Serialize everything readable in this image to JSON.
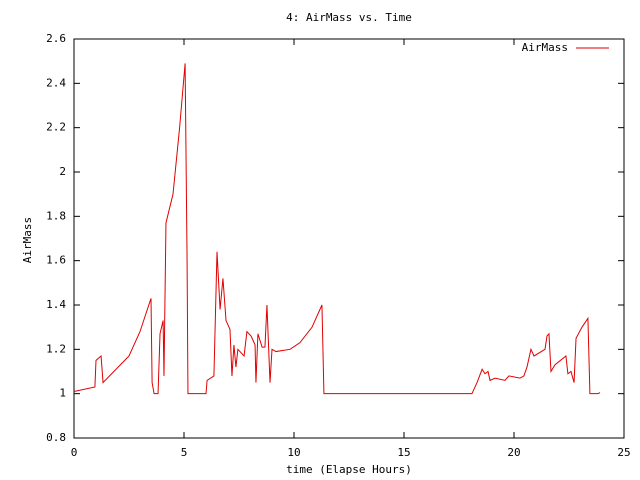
{
  "chart_data": {
    "type": "line",
    "title": "4: AirMass vs. Time",
    "x_label": "time (Elapse Hours)",
    "y_label": "AirMass",
    "x": [
      0,
      0.95,
      1.0,
      1.23,
      1.32,
      2.5,
      3.0,
      3.5,
      3.55,
      3.64,
      3.82,
      3.91,
      4.05,
      4.09,
      4.18,
      4.5,
      4.8,
      5.05,
      5.14,
      5.18,
      6.0,
      6.05,
      6.36,
      6.5,
      6.64,
      6.77,
      6.91,
      7.09,
      7.18,
      7.27,
      7.36,
      7.45,
      7.73,
      7.86,
      8.05,
      8.23,
      8.27,
      8.36,
      8.55,
      8.68,
      8.77,
      8.91,
      9.0,
      9.18,
      9.82,
      10.27,
      10.82,
      11.27,
      11.36,
      18.09,
      18.32,
      18.55,
      18.68,
      18.82,
      18.91,
      19.14,
      19.59,
      19.77,
      20.27,
      20.45,
      20.59,
      20.77,
      20.91,
      21.41,
      21.5,
      21.59,
      21.68,
      21.86,
      22.36,
      22.45,
      22.59,
      22.73,
      22.82,
      23.09,
      23.36,
      23.45,
      23.82,
      23.91
    ],
    "series": [
      {
        "name": "AirMass",
        "color": "#e00000",
        "values": [
          1.01,
          1.03,
          1.15,
          1.17,
          1.05,
          1.17,
          1.28,
          1.43,
          1.05,
          1.0,
          1.0,
          1.27,
          1.33,
          1.08,
          1.77,
          1.9,
          2.2,
          2.49,
          1.6,
          1.0,
          1.0,
          1.06,
          1.08,
          1.64,
          1.38,
          1.52,
          1.33,
          1.29,
          1.08,
          1.22,
          1.12,
          1.2,
          1.17,
          1.28,
          1.26,
          1.22,
          1.05,
          1.27,
          1.21,
          1.21,
          1.4,
          1.05,
          1.2,
          1.19,
          1.2,
          1.23,
          1.3,
          1.4,
          1.0,
          1.0,
          1.05,
          1.11,
          1.09,
          1.1,
          1.06,
          1.07,
          1.06,
          1.08,
          1.07,
          1.08,
          1.12,
          1.2,
          1.17,
          1.2,
          1.26,
          1.27,
          1.1,
          1.13,
          1.17,
          1.09,
          1.1,
          1.05,
          1.25,
          1.3,
          1.34,
          1.0,
          1.0,
          1.005
        ]
      }
    ],
    "xlim": [
      0,
      25
    ],
    "xticks": [
      0,
      5,
      10,
      15,
      20,
      25
    ],
    "ylim": [
      0.8,
      2.6
    ],
    "yticks": [
      0.8,
      1,
      1.2,
      1.4,
      1.6,
      1.8,
      2,
      2.2,
      2.4,
      2.6
    ],
    "grid": false,
    "legend": "upper right"
  }
}
